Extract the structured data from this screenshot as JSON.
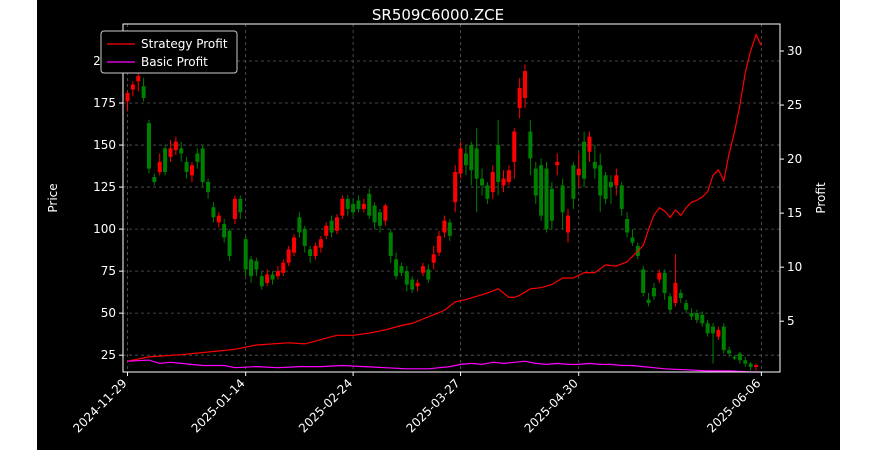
{
  "chart_data": {
    "type": "candlestick+line",
    "title": "SR509C6000.ZCE",
    "xlabel": "",
    "ylabel_left": "Price",
    "ylabel_right": "Profit",
    "ylim_left": [
      15,
      222
    ],
    "ylim_right": [
      0.3,
      32.5
    ],
    "yticks_left": [
      25,
      50,
      75,
      100,
      125,
      150,
      175,
      200
    ],
    "yticks_right": [
      5,
      10,
      15,
      20,
      25,
      30
    ],
    "xtick_labels": [
      "2024-11-29",
      "2025-01-14",
      "2025-02-24",
      "2025-03-27",
      "2025-04-30",
      "2025-06-06"
    ],
    "grid": true,
    "legend": {
      "placement": "top-left",
      "entries": [
        {
          "label": "Strategy Profit",
          "color": "#ff0000"
        },
        {
          "label": "Basic Profit",
          "color": "#ff00ff"
        }
      ]
    },
    "colors": {
      "background": "#000000",
      "up": "#ff0000",
      "down": "#008000"
    },
    "candles": [
      [
        0,
        176,
        181,
        170,
        182
      ],
      [
        1,
        183,
        186,
        179,
        188
      ],
      [
        2,
        188,
        191,
        182,
        194
      ],
      [
        3,
        185,
        178,
        176,
        190
      ],
      [
        4,
        163,
        136,
        133,
        165
      ],
      [
        5,
        131,
        128,
        126,
        133
      ],
      [
        6,
        134,
        140,
        132,
        145
      ],
      [
        7,
        148,
        134,
        132,
        150
      ],
      [
        8,
        143,
        148,
        140,
        153
      ],
      [
        9,
        147,
        152,
        144,
        155
      ],
      [
        10,
        148,
        145,
        140,
        152
      ],
      [
        11,
        140,
        134,
        130,
        143
      ],
      [
        12,
        132,
        138,
        128,
        140
      ],
      [
        13,
        145,
        140,
        136,
        148
      ],
      [
        14,
        148,
        128,
        125,
        150
      ],
      [
        15,
        128,
        122,
        118,
        130
      ],
      [
        16,
        113,
        107,
        104,
        116
      ],
      [
        17,
        104,
        108,
        101,
        110
      ],
      [
        18,
        103,
        95,
        92,
        106
      ],
      [
        19,
        99,
        84,
        81,
        100
      ],
      [
        20,
        106,
        118,
        103,
        120
      ],
      [
        21,
        118,
        110,
        106,
        120
      ],
      [
        22,
        94,
        76,
        72,
        96
      ],
      [
        23,
        82,
        72,
        68,
        84
      ],
      [
        24,
        81,
        76,
        72,
        83
      ],
      [
        25,
        72,
        66,
        64,
        75
      ],
      [
        26,
        68,
        73,
        66,
        76
      ],
      [
        27,
        73,
        70,
        67,
        75
      ],
      [
        28,
        72,
        75,
        70,
        78
      ],
      [
        29,
        74,
        80,
        72,
        82
      ],
      [
        30,
        80,
        88,
        78,
        90
      ],
      [
        31,
        86,
        95,
        84,
        97
      ],
      [
        32,
        107,
        98,
        95,
        110
      ],
      [
        33,
        100,
        90,
        86,
        102
      ],
      [
        34,
        88,
        84,
        80,
        90
      ],
      [
        35,
        84,
        90,
        82,
        92
      ],
      [
        36,
        89,
        94,
        86,
        96
      ],
      [
        37,
        96,
        102,
        94,
        104
      ],
      [
        38,
        105,
        98,
        95,
        108
      ],
      [
        39,
        99,
        107,
        97,
        109
      ],
      [
        40,
        108,
        118,
        106,
        120
      ],
      [
        41,
        118,
        112,
        108,
        120
      ],
      [
        42,
        115,
        110,
        108,
        118
      ],
      [
        43,
        117,
        112,
        110,
        120
      ],
      [
        44,
        112,
        115,
        110,
        118
      ],
      [
        45,
        121,
        108,
        106,
        124
      ],
      [
        46,
        114,
        104,
        100,
        116
      ],
      [
        47,
        110,
        102,
        98,
        112
      ],
      [
        48,
        105,
        114,
        102,
        115
      ],
      [
        49,
        98,
        84,
        80,
        100
      ],
      [
        50,
        82,
        72,
        70,
        86
      ],
      [
        51,
        78,
        74,
        72,
        80
      ],
      [
        52,
        75,
        67,
        63,
        78
      ],
      [
        53,
        70,
        64,
        62,
        72
      ],
      [
        54,
        66,
        68,
        63,
        70
      ],
      [
        55,
        74,
        78,
        72,
        80
      ],
      [
        56,
        76,
        70,
        68,
        79
      ],
      [
        57,
        80,
        85,
        76,
        90
      ],
      [
        58,
        86,
        96,
        84,
        99
      ],
      [
        59,
        98,
        105,
        95,
        108
      ],
      [
        60,
        104,
        96,
        93,
        106
      ],
      [
        61,
        116,
        134,
        110,
        138
      ],
      [
        62,
        133,
        148,
        130,
        152
      ],
      [
        63,
        145,
        138,
        132,
        150
      ],
      [
        64,
        150,
        135,
        126,
        152
      ],
      [
        65,
        148,
        130,
        110,
        160
      ],
      [
        66,
        130,
        126,
        120,
        136
      ],
      [
        67,
        126,
        118,
        115,
        128
      ],
      [
        68,
        122,
        134,
        118,
        138
      ],
      [
        69,
        150,
        128,
        120,
        165
      ],
      [
        70,
        126,
        130,
        122,
        135
      ],
      [
        71,
        128,
        135,
        126,
        138
      ],
      [
        72,
        140,
        158,
        130,
        160
      ],
      [
        73,
        172,
        184,
        166,
        190
      ],
      [
        74,
        178,
        194,
        172,
        198
      ],
      [
        75,
        158,
        142,
        132,
        165
      ],
      [
        76,
        136,
        120,
        115,
        140
      ],
      [
        77,
        138,
        108,
        105,
        142
      ],
      [
        78,
        136,
        100,
        98,
        140
      ],
      [
        79,
        124,
        105,
        100,
        128
      ],
      [
        80,
        138,
        140,
        132,
        145
      ],
      [
        81,
        126,
        110,
        100,
        130
      ],
      [
        82,
        98,
        108,
        92,
        112
      ],
      [
        83,
        138,
        118,
        112,
        140
      ],
      [
        84,
        132,
        136,
        125,
        145
      ],
      [
        85,
        152,
        130,
        125,
        158
      ],
      [
        86,
        146,
        155,
        140,
        158
      ],
      [
        87,
        140,
        136,
        130,
        150
      ],
      [
        88,
        138,
        120,
        110,
        145
      ],
      [
        89,
        132,
        118,
        115,
        134
      ],
      [
        90,
        128,
        125,
        115,
        132
      ],
      [
        91,
        126,
        132,
        120,
        136
      ],
      [
        92,
        126,
        112,
        108,
        128
      ],
      [
        93,
        106,
        98,
        95,
        110
      ],
      [
        94,
        95,
        92,
        90,
        100
      ],
      [
        95,
        90,
        84,
        82,
        92
      ],
      [
        96,
        76,
        62,
        60,
        78
      ],
      [
        97,
        58,
        56,
        54,
        62
      ],
      [
        98,
        65,
        60,
        58,
        68
      ],
      [
        99,
        70,
        74,
        68,
        76
      ],
      [
        100,
        74,
        62,
        58,
        76
      ],
      [
        101,
        60,
        52,
        50,
        62
      ],
      [
        102,
        56,
        68,
        54,
        85
      ],
      [
        103,
        62,
        59,
        56,
        64
      ],
      [
        104,
        56,
        52,
        50,
        58
      ],
      [
        105,
        50,
        48,
        46,
        53
      ],
      [
        106,
        50,
        46,
        44,
        52
      ],
      [
        107,
        49,
        44,
        42,
        51
      ],
      [
        108,
        44,
        38,
        36,
        46
      ],
      [
        109,
        42,
        38,
        20,
        44
      ],
      [
        110,
        36,
        40,
        34,
        42
      ],
      [
        111,
        42,
        28,
        26,
        44
      ],
      [
        112,
        28,
        26,
        24,
        30
      ],
      [
        113,
        24,
        23,
        22,
        25
      ],
      [
        114,
        26,
        22,
        20,
        27
      ],
      [
        115,
        22,
        20,
        18,
        24
      ],
      [
        116,
        20,
        18,
        16,
        21
      ],
      [
        117,
        18,
        19,
        16,
        20
      ]
    ],
    "series": [
      {
        "name": "Strategy Profit",
        "color": "#ff0000",
        "points": [
          [
            0,
            1.3
          ],
          [
            4,
            1.7
          ],
          [
            10,
            1.9
          ],
          [
            16,
            2.2
          ],
          [
            20,
            2.4
          ],
          [
            24,
            2.8
          ],
          [
            30,
            3.0
          ],
          [
            33,
            2.9
          ],
          [
            36,
            3.3
          ],
          [
            39,
            3.7
          ],
          [
            42,
            3.7
          ],
          [
            45,
            3.9
          ],
          [
            48,
            4.2
          ],
          [
            51,
            4.6
          ],
          [
            53,
            4.8
          ],
          [
            55,
            5.2
          ],
          [
            57,
            5.6
          ],
          [
            59,
            6.0
          ],
          [
            61,
            6.8
          ],
          [
            63,
            7.0
          ],
          [
            65,
            7.3
          ],
          [
            67,
            7.6
          ],
          [
            69,
            8.0
          ],
          [
            71,
            7.2
          ],
          [
            72,
            7.2
          ],
          [
            73,
            7.4
          ],
          [
            75,
            8.0
          ],
          [
            77,
            8.1
          ],
          [
            79,
            8.4
          ],
          [
            81,
            9.0
          ],
          [
            83,
            9.0
          ],
          [
            85,
            9.5
          ],
          [
            87,
            9.5
          ],
          [
            89,
            10.2
          ],
          [
            91,
            10.1
          ],
          [
            93,
            10.5
          ],
          [
            95,
            11.5
          ],
          [
            96,
            12.0
          ],
          [
            97,
            13.5
          ],
          [
            98,
            14.8
          ],
          [
            99,
            15.5
          ],
          [
            100,
            15.2
          ],
          [
            101,
            14.6
          ],
          [
            102,
            15.3
          ],
          [
            103,
            14.8
          ],
          [
            104,
            15.5
          ],
          [
            105,
            16.0
          ],
          [
            106,
            16.2
          ],
          [
            107,
            16.5
          ],
          [
            108,
            17.0
          ],
          [
            109,
            18.5
          ],
          [
            110,
            19.0
          ],
          [
            111,
            18.0
          ],
          [
            112,
            20.5
          ],
          [
            113,
            22.5
          ],
          [
            114,
            25.0
          ],
          [
            115,
            28.0
          ],
          [
            116,
            30.0
          ],
          [
            117,
            31.5
          ],
          [
            118,
            30.5
          ]
        ]
      },
      {
        "name": "Basic Profit",
        "color": "#ff00ff",
        "points": [
          [
            0,
            1.3
          ],
          [
            4,
            1.4
          ],
          [
            6,
            1.1
          ],
          [
            8,
            1.2
          ],
          [
            10,
            1.1
          ],
          [
            14,
            0.9
          ],
          [
            18,
            0.9
          ],
          [
            20,
            0.7
          ],
          [
            24,
            0.8
          ],
          [
            28,
            0.7
          ],
          [
            32,
            0.8
          ],
          [
            36,
            0.8
          ],
          [
            40,
            0.9
          ],
          [
            44,
            0.8
          ],
          [
            48,
            0.7
          ],
          [
            52,
            0.6
          ],
          [
            56,
            0.6
          ],
          [
            60,
            0.8
          ],
          [
            62,
            1.0
          ],
          [
            64,
            1.1
          ],
          [
            66,
            1.0
          ],
          [
            68,
            1.2
          ],
          [
            70,
            1.1
          ],
          [
            72,
            1.2
          ],
          [
            74,
            1.3
          ],
          [
            76,
            1.1
          ],
          [
            78,
            1.0
          ],
          [
            80,
            1.1
          ],
          [
            82,
            1.0
          ],
          [
            84,
            1.0
          ],
          [
            86,
            1.1
          ],
          [
            88,
            1.0
          ],
          [
            90,
            1.0
          ],
          [
            92,
            0.9
          ],
          [
            94,
            0.9
          ],
          [
            96,
            0.8
          ],
          [
            98,
            0.7
          ],
          [
            100,
            0.6
          ],
          [
            104,
            0.5
          ],
          [
            108,
            0.4
          ],
          [
            112,
            0.4
          ],
          [
            116,
            0.3
          ],
          [
            118,
            0.3
          ]
        ]
      }
    ]
  }
}
